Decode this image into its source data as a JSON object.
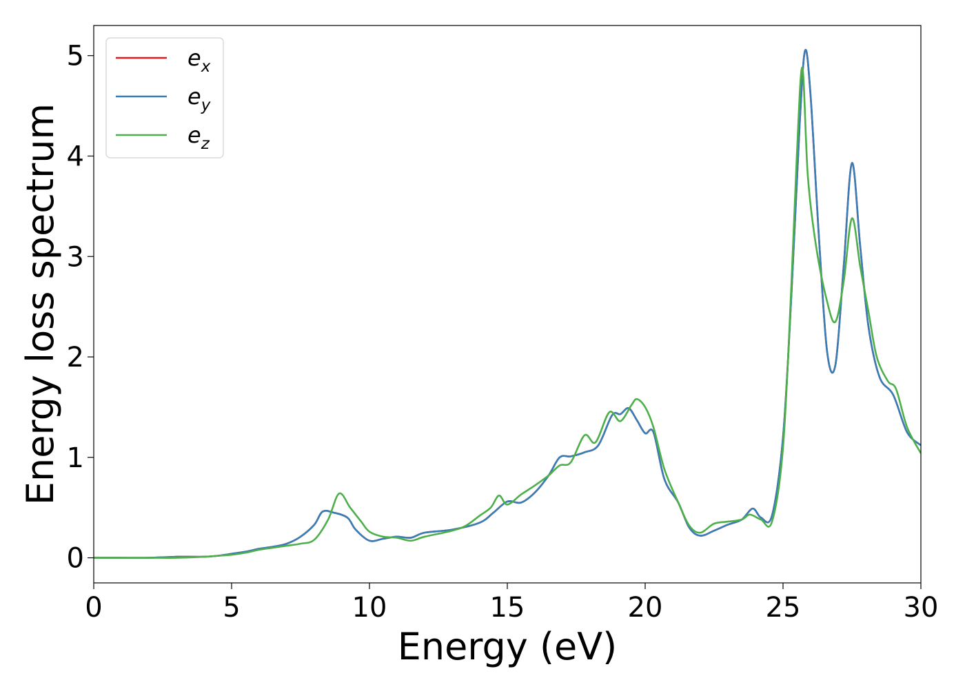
{
  "chart_data": {
    "type": "line",
    "title": "",
    "xlabel": "Energy (eV)",
    "ylabel": "Energy loss spectrum",
    "xlim": [
      0,
      30
    ],
    "ylim": [
      -0.25,
      5.3
    ],
    "xticks": [
      0,
      5,
      10,
      15,
      20,
      25,
      30
    ],
    "yticks": [
      0,
      1,
      2,
      3,
      4,
      5
    ],
    "grid": false,
    "legend_position": "top-left",
    "series": [
      {
        "name": "e",
        "subscript": "x",
        "color": "#e41a1c",
        "x": [
          0,
          1,
          2,
          3,
          4,
          4.5,
          5,
          5.5,
          6,
          6.5,
          7,
          7.5,
          8,
          8.3,
          8.7,
          9.2,
          9.5,
          10,
          10.5,
          11,
          11.5,
          12,
          13,
          14,
          14.5,
          15,
          15.5,
          16,
          16.5,
          16.9,
          17.3,
          17.8,
          18.3,
          18.8,
          19.1,
          19.4,
          19.7,
          20,
          20.3,
          20.7,
          21.2,
          21.6,
          22,
          22.5,
          23,
          23.5,
          23.9,
          24.2,
          24.6,
          25,
          25.3,
          25.6,
          25.8,
          26,
          26.3,
          26.6,
          26.9,
          27.2,
          27.5,
          27.8,
          28.1,
          28.5,
          29,
          29.5,
          30
        ],
        "y": [
          0,
          0,
          0,
          0.01,
          0.01,
          0.02,
          0.04,
          0.06,
          0.09,
          0.11,
          0.14,
          0.21,
          0.33,
          0.46,
          0.45,
          0.4,
          0.28,
          0.17,
          0.19,
          0.21,
          0.2,
          0.25,
          0.28,
          0.35,
          0.45,
          0.56,
          0.55,
          0.65,
          0.82,
          1.0,
          1.01,
          1.05,
          1.12,
          1.42,
          1.43,
          1.49,
          1.37,
          1.24,
          1.25,
          0.78,
          0.55,
          0.3,
          0.22,
          0.27,
          0.33,
          0.38,
          0.49,
          0.4,
          0.42,
          1.2,
          2.6,
          4.3,
          5.05,
          4.6,
          3.2,
          2.05,
          1.92,
          2.9,
          3.93,
          3.1,
          2.3,
          1.8,
          1.62,
          1.25,
          1.12
        ]
      },
      {
        "name": "e",
        "subscript": "y",
        "color": "#377eb8",
        "x": [
          0,
          1,
          2,
          3,
          4,
          4.5,
          5,
          5.5,
          6,
          6.5,
          7,
          7.5,
          8,
          8.3,
          8.7,
          9.2,
          9.5,
          10,
          10.5,
          11,
          11.5,
          12,
          13,
          14,
          14.5,
          15,
          15.5,
          16,
          16.5,
          16.9,
          17.3,
          17.8,
          18.3,
          18.8,
          19.1,
          19.4,
          19.7,
          20,
          20.3,
          20.7,
          21.2,
          21.6,
          22,
          22.5,
          23,
          23.5,
          23.9,
          24.2,
          24.6,
          25,
          25.3,
          25.6,
          25.8,
          26,
          26.3,
          26.6,
          26.9,
          27.2,
          27.5,
          27.8,
          28.1,
          28.5,
          29,
          29.5,
          30
        ],
        "y": [
          0,
          0,
          0,
          0.01,
          0.01,
          0.02,
          0.04,
          0.06,
          0.09,
          0.11,
          0.14,
          0.21,
          0.33,
          0.46,
          0.45,
          0.4,
          0.28,
          0.17,
          0.19,
          0.21,
          0.2,
          0.25,
          0.28,
          0.35,
          0.45,
          0.56,
          0.55,
          0.65,
          0.82,
          1.0,
          1.01,
          1.05,
          1.12,
          1.42,
          1.43,
          1.49,
          1.37,
          1.24,
          1.25,
          0.78,
          0.55,
          0.3,
          0.22,
          0.27,
          0.33,
          0.38,
          0.49,
          0.4,
          0.42,
          1.2,
          2.6,
          4.3,
          5.05,
          4.6,
          3.2,
          2.05,
          1.92,
          2.9,
          3.93,
          3.1,
          2.3,
          1.8,
          1.62,
          1.25,
          1.12
        ]
      },
      {
        "name": "e",
        "subscript": "z",
        "color": "#4daf4a",
        "x": [
          0,
          1,
          2,
          3,
          4,
          4.5,
          5,
          5.5,
          6,
          6.5,
          7,
          7.5,
          8,
          8.5,
          8.9,
          9.3,
          9.7,
          10,
          10.5,
          11,
          11.5,
          12,
          13,
          13.5,
          14,
          14.4,
          14.7,
          15,
          15.5,
          16,
          16.5,
          16.9,
          17.3,
          17.8,
          18.2,
          18.7,
          19.1,
          19.5,
          19.7,
          20,
          20.3,
          20.7,
          21.2,
          21.6,
          22,
          22.5,
          23,
          23.5,
          23.8,
          24.2,
          24.6,
          25,
          25.3,
          25.5,
          25.7,
          25.9,
          26.2,
          26.6,
          26.9,
          27.2,
          27.5,
          27.8,
          28.1,
          28.4,
          28.8,
          29.1,
          29.5,
          30
        ],
        "y": [
          0,
          0,
          0,
          0,
          0.01,
          0.02,
          0.03,
          0.05,
          0.08,
          0.1,
          0.12,
          0.14,
          0.18,
          0.38,
          0.64,
          0.5,
          0.36,
          0.26,
          0.21,
          0.2,
          0.17,
          0.21,
          0.27,
          0.32,
          0.42,
          0.5,
          0.62,
          0.53,
          0.63,
          0.72,
          0.82,
          0.92,
          0.95,
          1.22,
          1.15,
          1.45,
          1.36,
          1.52,
          1.58,
          1.5,
          1.3,
          0.88,
          0.55,
          0.32,
          0.25,
          0.34,
          0.36,
          0.38,
          0.43,
          0.38,
          0.36,
          1.1,
          2.7,
          4.0,
          4.88,
          3.8,
          3.1,
          2.55,
          2.35,
          2.75,
          3.38,
          2.9,
          2.45,
          2.0,
          1.76,
          1.68,
          1.3,
          1.04
        ]
      }
    ]
  }
}
